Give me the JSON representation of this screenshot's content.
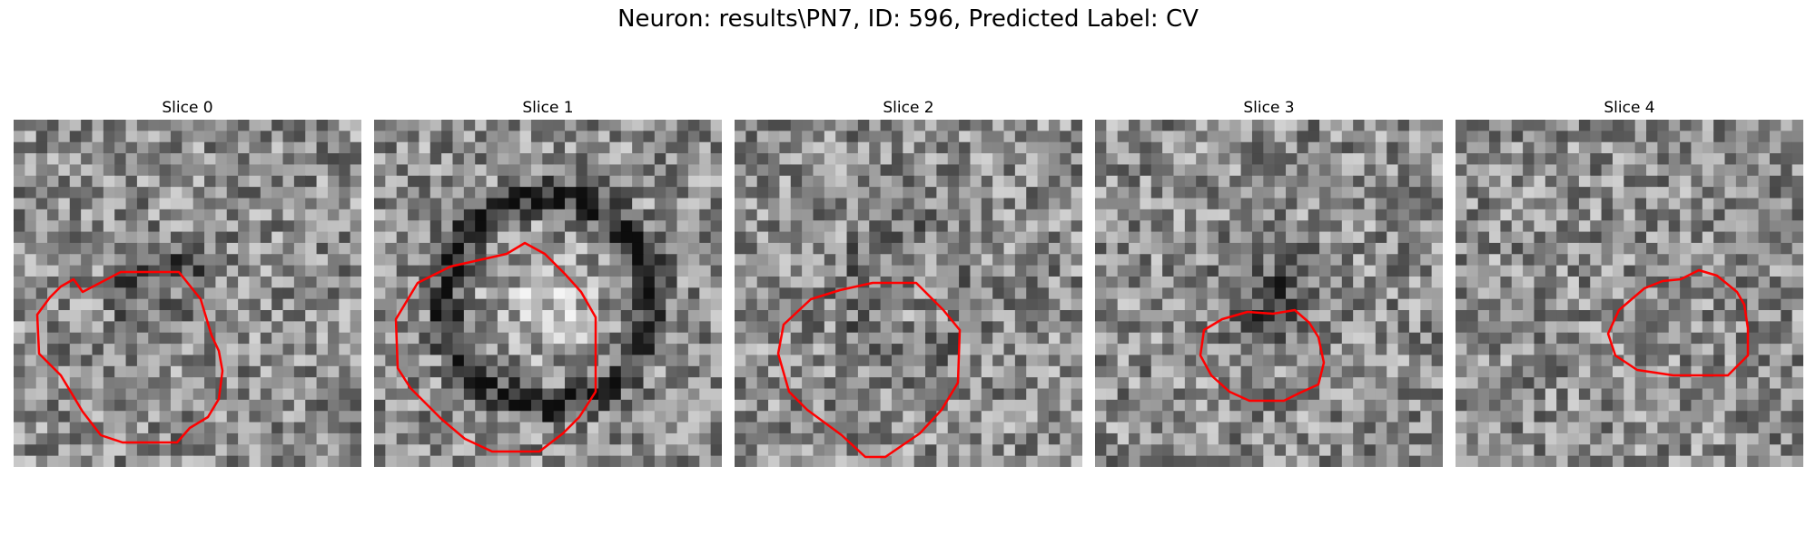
{
  "figure": {
    "title": "Neuron: results\\PN7, ID: 596, Predicted Label: CV"
  },
  "panels": [
    {
      "title": "Slice 0"
    },
    {
      "title": "Slice 1"
    },
    {
      "title": "Slice 2"
    },
    {
      "title": "Slice 3"
    },
    {
      "title": "Slice 4"
    }
  ],
  "colors": {
    "contour": "#ff0000",
    "background": "#ffffff",
    "colormap": "gray"
  }
}
